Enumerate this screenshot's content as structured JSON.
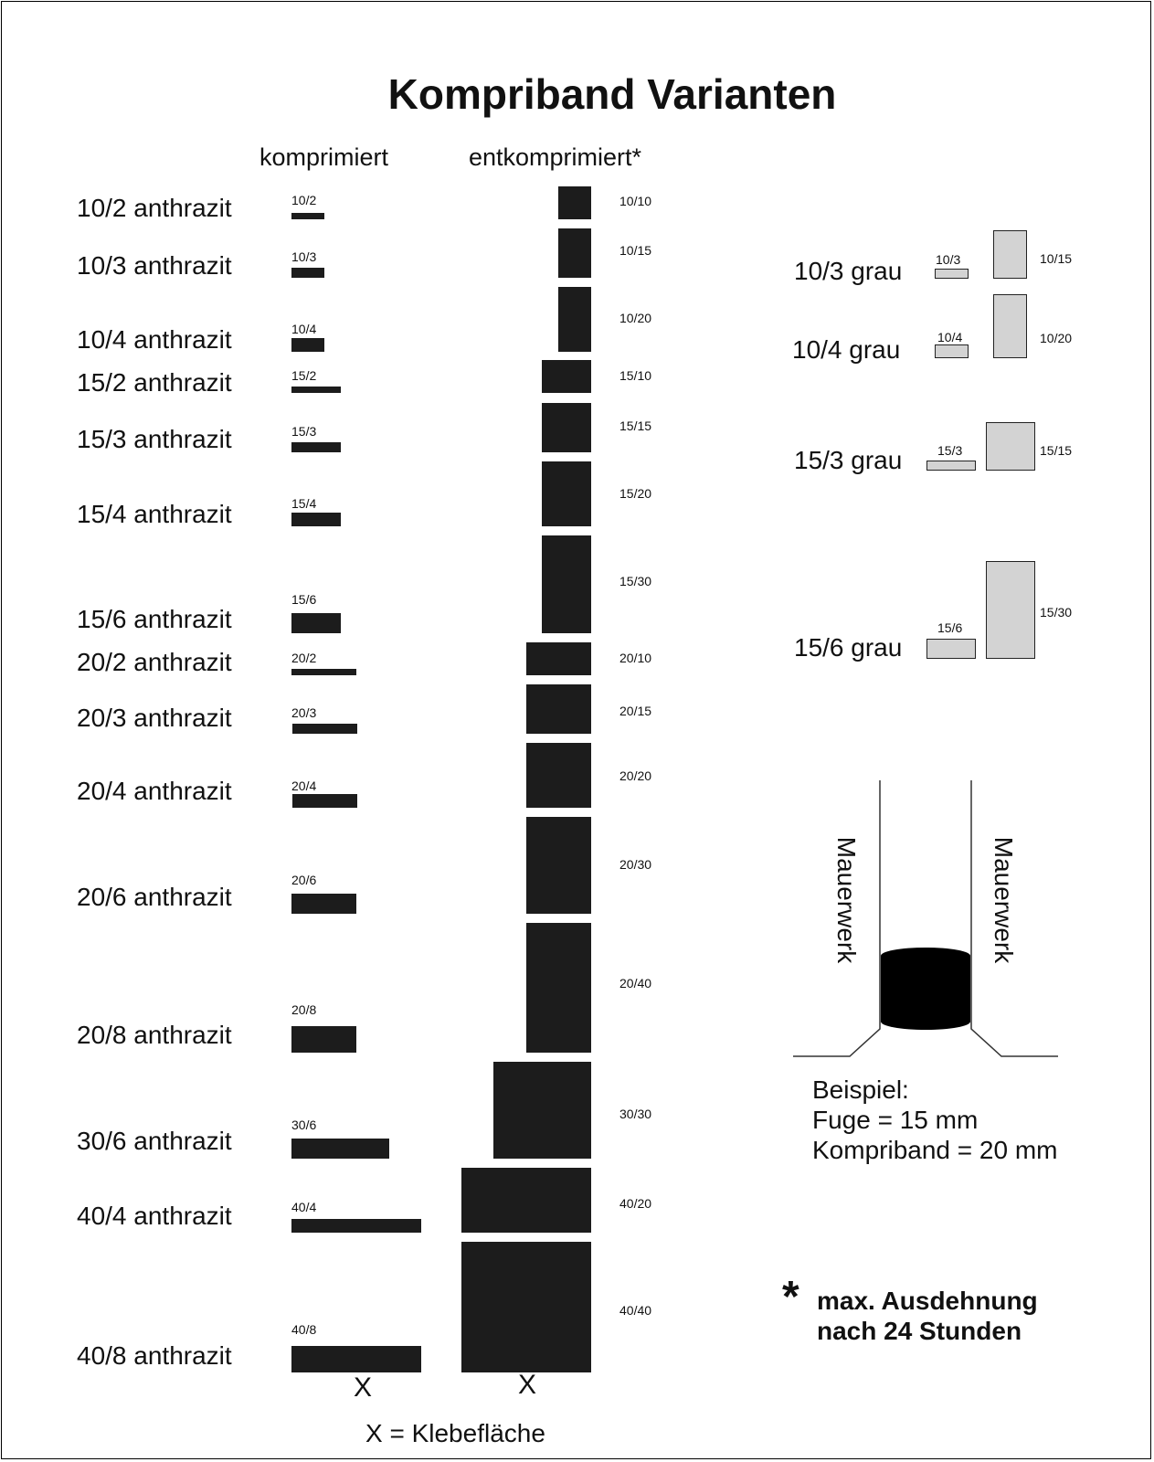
{
  "title": "Kompriband Varianten",
  "column_headers": {
    "compressed": "komprimiert",
    "decompressed": "entkomprimiert*"
  },
  "anthrazit_variants": [
    {
      "name": "10/2 anthrazit",
      "compressed_label": "10/2",
      "expanded_label": "10/10",
      "width_mm": 10,
      "compressed_mm": 2,
      "expanded_mm": 10
    },
    {
      "name": "10/3 anthrazit",
      "compressed_label": "10/3",
      "expanded_label": "10/15",
      "width_mm": 10,
      "compressed_mm": 3,
      "expanded_mm": 15
    },
    {
      "name": "10/4 anthrazit",
      "compressed_label": "10/4",
      "expanded_label": "10/20",
      "width_mm": 10,
      "compressed_mm": 4,
      "expanded_mm": 20
    },
    {
      "name": "15/2 anthrazit",
      "compressed_label": "15/2",
      "expanded_label": "15/10",
      "width_mm": 15,
      "compressed_mm": 2,
      "expanded_mm": 10
    },
    {
      "name": "15/3 anthrazit",
      "compressed_label": "15/3",
      "expanded_label": "15/15",
      "width_mm": 15,
      "compressed_mm": 3,
      "expanded_mm": 15
    },
    {
      "name": "15/4 anthrazit",
      "compressed_label": "15/4",
      "expanded_label": "15/20",
      "width_mm": 15,
      "compressed_mm": 4,
      "expanded_mm": 20
    },
    {
      "name": "15/6 anthrazit",
      "compressed_label": "15/6",
      "expanded_label": "15/30",
      "width_mm": 15,
      "compressed_mm": 6,
      "expanded_mm": 30
    },
    {
      "name": "20/2 anthrazit",
      "compressed_label": "20/2",
      "expanded_label": "20/10",
      "width_mm": 20,
      "compressed_mm": 2,
      "expanded_mm": 10
    },
    {
      "name": "20/3 anthrazit",
      "compressed_label": "20/3",
      "expanded_label": "20/15",
      "width_mm": 20,
      "compressed_mm": 3,
      "expanded_mm": 15
    },
    {
      "name": "20/4 anthrazit",
      "compressed_label": "20/4",
      "expanded_label": "20/20",
      "width_mm": 20,
      "compressed_mm": 4,
      "expanded_mm": 20
    },
    {
      "name": "20/6 anthrazit",
      "compressed_label": "20/6",
      "expanded_label": "20/30",
      "width_mm": 20,
      "compressed_mm": 6,
      "expanded_mm": 30
    },
    {
      "name": "20/8 anthrazit",
      "compressed_label": "20/8",
      "expanded_label": "20/40",
      "width_mm": 20,
      "compressed_mm": 8,
      "expanded_mm": 40
    },
    {
      "name": "30/6 anthrazit",
      "compressed_label": "30/6",
      "expanded_label": "30/30",
      "width_mm": 30,
      "compressed_mm": 6,
      "expanded_mm": 30
    },
    {
      "name": "40/4 anthrazit",
      "compressed_label": "40/4",
      "expanded_label": "40/20",
      "width_mm": 40,
      "compressed_mm": 4,
      "expanded_mm": 20
    },
    {
      "name": "40/8 anthrazit",
      "compressed_label": "40/8",
      "expanded_label": "40/40",
      "width_mm": 40,
      "compressed_mm": 8,
      "expanded_mm": 40
    }
  ],
  "grau_variants": [
    {
      "name": "10/3 grau",
      "compressed_label": "10/3",
      "expanded_label": "10/15"
    },
    {
      "name": "10/4 grau",
      "compressed_label": "10/4",
      "expanded_label": "10/20"
    },
    {
      "name": "15/3 grau",
      "compressed_label": "15/3",
      "expanded_label": "15/15"
    },
    {
      "name": "15/6 grau",
      "compressed_label": "15/6",
      "expanded_label": "15/30"
    }
  ],
  "x_marker": "X",
  "legend": "X = Klebefläche",
  "example": {
    "wall_label_left": "Mauerwerk",
    "wall_label_right": "Mauerwerk",
    "line1": "Beispiel:",
    "line2": "Fuge = 15 mm",
    "line3": "Kompriband = 20 mm"
  },
  "footnote": {
    "star": "*",
    "line1": "max. Ausdehnung",
    "line2": "nach 24 Stunden"
  },
  "colors": {
    "anthrazit": "#1c1c1c",
    "grau": "#d3d3d3",
    "background": "#ffffff"
  }
}
